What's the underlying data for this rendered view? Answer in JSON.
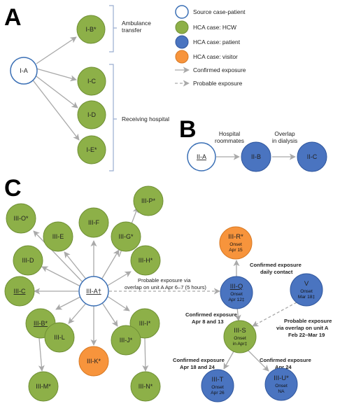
{
  "colors": {
    "source_fill": "#ffffff",
    "source_stroke": "#3a6fb5",
    "hcw": "#8db048",
    "hcw_stroke": "#6f8f35",
    "patient": "#4a74c0",
    "patient_stroke": "#2f569d",
    "visitor": "#f7943c",
    "visitor_stroke": "#d77822",
    "arrow": "#a9a9a9",
    "bracket": "#9aaed0"
  },
  "legend": {
    "source": "Source case-patient",
    "hcw": "HCA case: HCW",
    "patient": "HCA case: patient",
    "visitor": "HCA case: visitor",
    "confirmed": "Confirmed exposure",
    "probable": "Probable exposure"
  },
  "panel_a": {
    "letter": "A",
    "source": "I-A",
    "nodes": [
      "I-B*",
      "I-C",
      "I-D",
      "I-E*"
    ],
    "bracket_ambulance": [
      "Ambulance",
      "transfer"
    ],
    "bracket_hospital": "Receiving hospital"
  },
  "panel_b": {
    "letter": "B",
    "source": "II-A",
    "nodes": [
      "II-B",
      "II-C"
    ],
    "edge1": [
      "Hospital",
      "roommates"
    ],
    "edge2": [
      "Overlap",
      "in dialysis"
    ]
  },
  "panel_c": {
    "letter": "C",
    "source": "III-A†",
    "ring": [
      "III-O*",
      "III-E",
      "III-F",
      "III-G*",
      "III-P*",
      "III-D",
      "III-H*",
      "III-C",
      "III-B*",
      "III-I*",
      "III-L",
      "III-J*",
      "III-K*",
      "III-M*",
      "III-N*"
    ],
    "probable_ua": [
      "Probable exposure via",
      "overlap on unit A  Apr 6–7 (5 hours)"
    ],
    "q": {
      "label": "III-Q",
      "onset": "Onset",
      "date": "Apr 12‡"
    },
    "r": {
      "label": "III-R*",
      "onset": "Onset",
      "date": "Apr 15"
    },
    "v": {
      "label": "V",
      "onset": "Onset",
      "date": "Mar 18‡"
    },
    "s": {
      "label": "III-S",
      "onset": "Onset",
      "date": "in Apr‡"
    },
    "t": {
      "label": "III-T",
      "onset": "Onset",
      "date": "Apr 26"
    },
    "u": {
      "label": "III-U*",
      "onset": "Onset",
      "date": "NA"
    },
    "note_qr": [
      "Confirmed exposure",
      "daily contact"
    ],
    "note_qs": [
      "Confirmed exposure",
      "Apr 8 and 13"
    ],
    "note_vs": [
      "Probable exposure",
      "via overlap on unit A",
      "Feb 22–Mar 19"
    ],
    "note_st": [
      "Confirmed exposure",
      "Apr 18 and 24"
    ],
    "note_su": [
      "Confirmed exposure",
      "Apr 24"
    ]
  }
}
